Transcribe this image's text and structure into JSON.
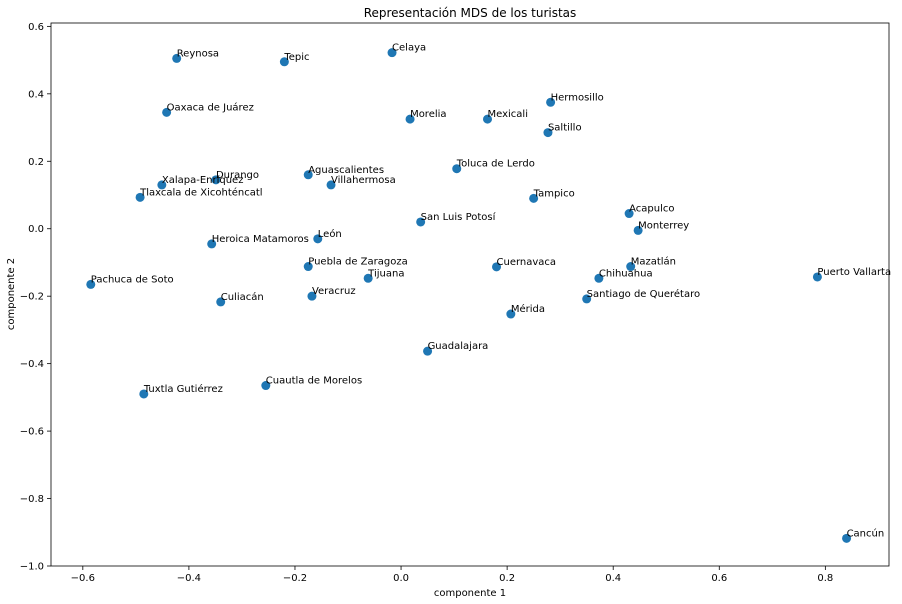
{
  "chart_data": {
    "type": "scatter",
    "title": "Representación MDS de los turistas",
    "xlabel": "componente 1",
    "ylabel": "componente 2",
    "xlim": [
      -0.66,
      0.92
    ],
    "ylim": [
      -1.0,
      0.61
    ],
    "xticks": [
      -0.6,
      -0.4,
      -0.2,
      0.0,
      0.2,
      0.4,
      0.6,
      0.8
    ],
    "xtick_labels": [
      "−0.6",
      "−0.4",
      "−0.2",
      "0.0",
      "0.2",
      "0.4",
      "0.6",
      "0.8"
    ],
    "yticks": [
      0.6,
      0.4,
      0.2,
      0.0,
      -0.2,
      -0.4,
      -0.6,
      -0.8,
      -1.0
    ],
    "ytick_labels": [
      "0.6",
      "0.4",
      "0.2",
      "0.0",
      "−0.2",
      "−0.4",
      "−0.6",
      "−0.8",
      "−1.0"
    ],
    "grid": false,
    "point_color": "#1f77b4",
    "points": [
      {
        "label": "Reynosa",
        "x": -0.423,
        "y": 0.505
      },
      {
        "label": "Tepic",
        "x": -0.22,
        "y": 0.495
      },
      {
        "label": "Celaya",
        "x": -0.017,
        "y": 0.522
      },
      {
        "label": "Hermosillo",
        "x": 0.282,
        "y": 0.375
      },
      {
        "label": "Oaxaca de Juárez",
        "x": -0.442,
        "y": 0.345
      },
      {
        "label": "Morelia",
        "x": 0.017,
        "y": 0.325
      },
      {
        "label": "Mexicali",
        "x": 0.163,
        "y": 0.325
      },
      {
        "label": "Saltillo",
        "x": 0.277,
        "y": 0.285
      },
      {
        "label": "Toluca de Lerdo",
        "x": 0.105,
        "y": 0.178
      },
      {
        "label": "Aguascalientes",
        "x": -0.175,
        "y": 0.16
      },
      {
        "label": "Durango",
        "x": -0.349,
        "y": 0.145
      },
      {
        "label": "Xalapa-Enríquez",
        "x": -0.451,
        "y": 0.13
      },
      {
        "label": "Villahermosa",
        "x": -0.132,
        "y": 0.13
      },
      {
        "label": "Tlaxcala de Xicohténcatl",
        "x": -0.492,
        "y": 0.093
      },
      {
        "label": "Tampico",
        "x": 0.25,
        "y": 0.09
      },
      {
        "label": "Acapulco",
        "x": 0.43,
        "y": 0.045
      },
      {
        "label": "San Luis Potosí",
        "x": 0.037,
        "y": 0.02
      },
      {
        "label": "Monterrey",
        "x": 0.447,
        "y": -0.005
      },
      {
        "label": "León",
        "x": -0.157,
        "y": -0.03
      },
      {
        "label": "Heroica Matamoros",
        "x": -0.357,
        "y": -0.045
      },
      {
        "label": "Puebla de Zaragoza",
        "x": -0.175,
        "y": -0.112
      },
      {
        "label": "Cuernavaca",
        "x": 0.18,
        "y": -0.113
      },
      {
        "label": "Mazatlán",
        "x": 0.433,
        "y": -0.112
      },
      {
        "label": "Tijuana",
        "x": -0.062,
        "y": -0.147
      },
      {
        "label": "Chihuahua",
        "x": 0.373,
        "y": -0.147
      },
      {
        "label": "Puerto Vallarta",
        "x": 0.785,
        "y": -0.143
      },
      {
        "label": "Pachuca de Soto",
        "x": -0.585,
        "y": -0.165
      },
      {
        "label": "Veracruz",
        "x": -0.168,
        "y": -0.2
      },
      {
        "label": "Culiacán",
        "x": -0.34,
        "y": -0.217
      },
      {
        "label": "Santiago de Querétaro",
        "x": 0.35,
        "y": -0.208
      },
      {
        "label": "Mérida",
        "x": 0.207,
        "y": -0.253
      },
      {
        "label": "Guadalajara",
        "x": 0.05,
        "y": -0.363
      },
      {
        "label": "Cuautla de Morelos",
        "x": -0.255,
        "y": -0.465
      },
      {
        "label": "Tuxtla Gutiérrez",
        "x": -0.485,
        "y": -0.49
      },
      {
        "label": "Cancún",
        "x": 0.84,
        "y": -0.918
      }
    ]
  }
}
